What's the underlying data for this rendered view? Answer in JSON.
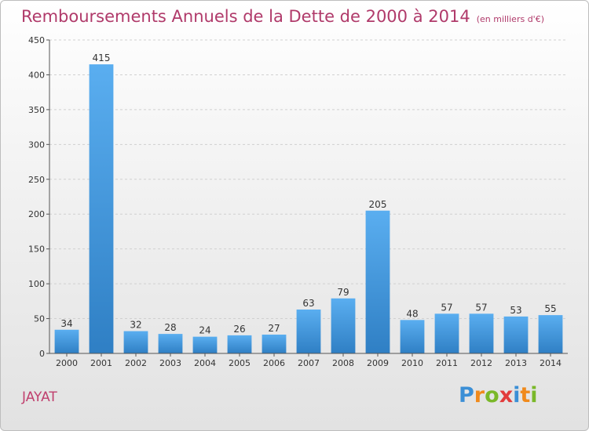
{
  "chart_data": {
    "type": "bar",
    "title": "Remboursements Annuels de la Dette de 2000 à 2014",
    "subtitle": "(en milliers d'€)",
    "categories": [
      "2000",
      "2001",
      "2002",
      "2003",
      "2004",
      "2005",
      "2006",
      "2007",
      "2008",
      "2009",
      "2010",
      "2011",
      "2012",
      "2013",
      "2014"
    ],
    "values": [
      34,
      415,
      32,
      28,
      24,
      26,
      27,
      63,
      79,
      205,
      48,
      57,
      57,
      53,
      55
    ],
    "ylim": [
      0,
      450
    ],
    "yticks": [
      0,
      50,
      100,
      150,
      200,
      250,
      300,
      350,
      400,
      450
    ],
    "grid": true,
    "bar_color": "#4f9fdc"
  },
  "commune": "JAYAT",
  "logo": {
    "letters": [
      {
        "char": "P",
        "color": "#3b8fd6"
      },
      {
        "char": "r",
        "color": "#f08a1c"
      },
      {
        "char": "o",
        "color": "#7ab829"
      },
      {
        "char": "x",
        "color": "#e23b3b"
      },
      {
        "char": "i",
        "color": "#3b8fd6"
      },
      {
        "char": "t",
        "color": "#f08a1c"
      },
      {
        "char": "i",
        "color": "#7ab829"
      }
    ]
  }
}
